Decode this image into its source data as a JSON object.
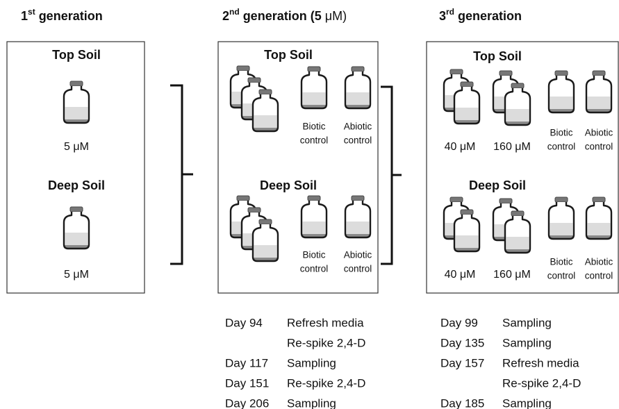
{
  "generations": [
    {
      "title": {
        "number": "1",
        "suffix": "st",
        "text": " generation"
      },
      "sections": [
        {
          "name": "Top Soil",
          "labels": [
            [
              "5 μM"
            ]
          ]
        },
        {
          "name": "Deep Soil",
          "labels": [
            [
              "5 μM"
            ]
          ]
        }
      ]
    },
    {
      "title": {
        "number": "2",
        "suffix": "nd",
        "text": " generation (5",
        "unit": " μM)"
      },
      "sections": [
        {
          "name": "Top Soil",
          "labels": [
            [
              "Biotic",
              "control"
            ],
            [
              "Abiotic",
              "control"
            ]
          ]
        },
        {
          "name": "Deep Soil",
          "labels": [
            [
              "Biotic",
              "control"
            ],
            [
              "Abiotic",
              "control"
            ]
          ]
        }
      ],
      "schedule": [
        {
          "day": "Day 94",
          "action": "Refresh media"
        },
        {
          "action": "Re-spike 2,4-D"
        },
        {
          "day": "Day 117",
          "action": "Sampling"
        },
        {
          "day": "Day 151",
          "action": "Re-spike 2,4-D"
        },
        {
          "day": "Day 206",
          "action": "Sampling"
        }
      ]
    },
    {
      "title": {
        "number": "3",
        "suffix": "rd",
        "text": " generation"
      },
      "sections": [
        {
          "name": "Top Soil",
          "labels": [
            [
              "40 μM"
            ],
            [
              "160 μM"
            ],
            [
              "Biotic",
              "control"
            ],
            [
              "Abiotic",
              "control"
            ]
          ]
        },
        {
          "name": "Deep Soil",
          "labels": [
            [
              "40 μM"
            ],
            [
              "160 μM"
            ],
            [
              "Biotic",
              "control"
            ],
            [
              "Abiotic",
              "control"
            ]
          ]
        }
      ],
      "schedule": [
        {
          "day": "Day 99",
          "action": "Sampling"
        },
        {
          "day": "Day 135",
          "action": "Sampling"
        },
        {
          "day": "Day 157",
          "action": "Refresh media"
        },
        {
          "action": "Re-spike 2,4-D"
        },
        {
          "day": "Day 185",
          "action": "Sampling"
        }
      ]
    }
  ]
}
